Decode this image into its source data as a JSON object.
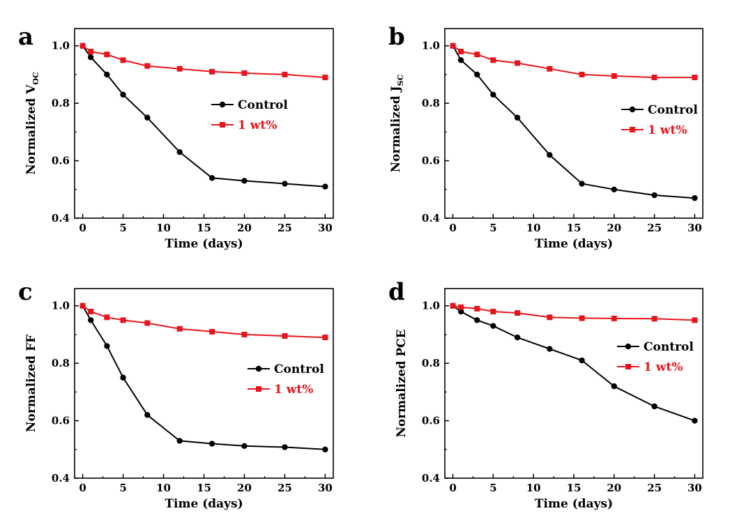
{
  "chart_data": [
    {
      "type": "line",
      "panel_label": "a",
      "xlabel": "Time (days)",
      "ylabel_main": "Normalized V",
      "ylabel_sub": "OC",
      "xlim": [
        -1,
        31
      ],
      "ylim": [
        0.4,
        1.06
      ],
      "xticks": [
        "0",
        "5",
        "10",
        "15",
        "20",
        "25",
        "30"
      ],
      "yticks": [
        "0.4",
        "0.6",
        "0.8",
        "1.0"
      ],
      "legend_position": "center-right",
      "series": [
        {
          "name": "Control",
          "color": "#000000",
          "marker": "circle",
          "x": [
            0,
            1,
            3,
            5,
            8,
            12,
            16,
            20,
            25,
            30
          ],
          "y": [
            1.0,
            0.96,
            0.9,
            0.83,
            0.75,
            0.63,
            0.54,
            0.53,
            0.52,
            0.51
          ]
        },
        {
          "name": "1 wt%",
          "color": "#e8141c",
          "marker": "square",
          "x": [
            0,
            1,
            3,
            5,
            8,
            12,
            16,
            20,
            25,
            30
          ],
          "y": [
            1.0,
            0.98,
            0.97,
            0.95,
            0.93,
            0.92,
            0.91,
            0.905,
            0.9,
            0.89
          ]
        }
      ]
    },
    {
      "type": "line",
      "panel_label": "b",
      "xlabel": "Time (days)",
      "ylabel_main": "Normalized J",
      "ylabel_sub": "SC",
      "xlim": [
        -1,
        31
      ],
      "ylim": [
        0.4,
        1.06
      ],
      "xticks": [
        "0",
        "5",
        "10",
        "15",
        "20",
        "25",
        "30"
      ],
      "yticks": [
        "0.4",
        "0.6",
        "0.8",
        "1.0"
      ],
      "legend_position": "center-right",
      "series": [
        {
          "name": "Control",
          "color": "#000000",
          "marker": "circle",
          "x": [
            0,
            1,
            3,
            5,
            8,
            12,
            16,
            20,
            25,
            30
          ],
          "y": [
            1.0,
            0.95,
            0.9,
            0.83,
            0.75,
            0.62,
            0.52,
            0.5,
            0.48,
            0.47
          ]
        },
        {
          "name": "1 wt%",
          "color": "#e8141c",
          "marker": "square",
          "x": [
            0,
            1,
            3,
            5,
            8,
            12,
            16,
            20,
            25,
            30
          ],
          "y": [
            1.0,
            0.98,
            0.97,
            0.95,
            0.94,
            0.92,
            0.9,
            0.895,
            0.89,
            0.89
          ]
        }
      ]
    },
    {
      "type": "line",
      "panel_label": "c",
      "xlabel": "Time (days)",
      "ylabel_main": "Normalized FF",
      "ylabel_sub": "",
      "xlim": [
        -1,
        31
      ],
      "ylim": [
        0.4,
        1.06
      ],
      "xticks": [
        "0",
        "5",
        "10",
        "15",
        "20",
        "25",
        "30"
      ],
      "yticks": [
        "0.4",
        "0.6",
        "0.8",
        "1.0"
      ],
      "legend_position": "center-right",
      "series": [
        {
          "name": "Control",
          "color": "#000000",
          "marker": "circle",
          "x": [
            0,
            1,
            3,
            5,
            8,
            12,
            16,
            20,
            25,
            30
          ],
          "y": [
            1.0,
            0.95,
            0.86,
            0.75,
            0.62,
            0.53,
            0.52,
            0.512,
            0.508,
            0.5
          ]
        },
        {
          "name": "1 wt%",
          "color": "#e8141c",
          "marker": "square",
          "x": [
            0,
            1,
            3,
            5,
            8,
            12,
            16,
            20,
            25,
            30
          ],
          "y": [
            1.0,
            0.98,
            0.96,
            0.95,
            0.94,
            0.92,
            0.91,
            0.9,
            0.895,
            0.89
          ]
        }
      ]
    },
    {
      "type": "line",
      "panel_label": "d",
      "xlabel": "Time (days)",
      "ylabel_main": "Normalized PCE",
      "ylabel_sub": "",
      "xlim": [
        -1,
        31
      ],
      "ylim": [
        0.4,
        1.06
      ],
      "xticks": [
        "0",
        "5",
        "10",
        "15",
        "20",
        "25",
        "30"
      ],
      "yticks": [
        "0.4",
        "0.6",
        "0.8",
        "1.0"
      ],
      "legend_position": "center-right",
      "series": [
        {
          "name": "Control",
          "color": "#000000",
          "marker": "circle",
          "x": [
            0,
            1,
            3,
            5,
            8,
            12,
            16,
            20,
            25,
            30
          ],
          "y": [
            1.0,
            0.98,
            0.95,
            0.93,
            0.89,
            0.85,
            0.81,
            0.72,
            0.65,
            0.6
          ]
        },
        {
          "name": "1 wt%",
          "color": "#e8141c",
          "marker": "square",
          "x": [
            0,
            1,
            3,
            5,
            8,
            12,
            16,
            20,
            25,
            30
          ],
          "y": [
            1.0,
            0.995,
            0.99,
            0.98,
            0.975,
            0.96,
            0.957,
            0.956,
            0.955,
            0.95
          ]
        }
      ]
    }
  ]
}
